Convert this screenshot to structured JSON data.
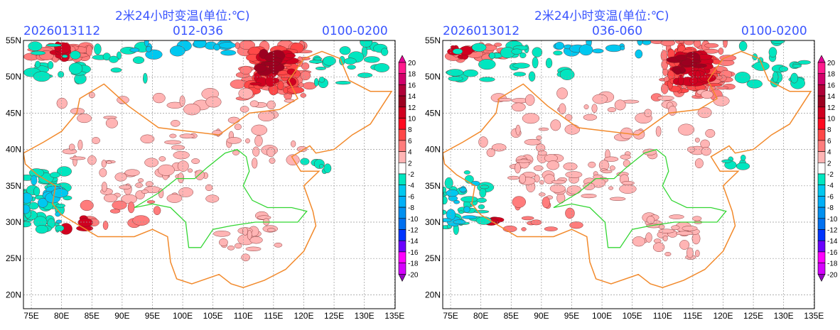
{
  "panels": [
    {
      "title": "2米24小时变温(单位:℃)",
      "init_time": "2026013112",
      "forecast_range": "012-036",
      "period": "0100-0200"
    },
    {
      "title": "2米24小时变温(单位:℃)",
      "init_time": "2026013012",
      "forecast_range": "036-060",
      "period": "0100-0200"
    }
  ],
  "lat_labels": [
    "55N",
    "50N",
    "45N",
    "40N",
    "35N",
    "30N",
    "25N",
    "20N"
  ],
  "lon_labels": [
    "75E",
    "80E",
    "85E",
    "90E",
    "95E",
    "100E",
    "105E",
    "110E",
    "115E",
    "120E",
    "125E",
    "130E",
    "135E"
  ],
  "colorbar": {
    "labels": [
      "20",
      "18",
      "16",
      "14",
      "12",
      "10",
      "8",
      "6",
      "4",
      "2",
      "-2",
      "-4",
      "-6",
      "-8",
      "-10",
      "-12",
      "-14",
      "-16",
      "-18",
      "-20"
    ],
    "colors": [
      "#e60096",
      "#ff1a8c",
      "#d0006a",
      "#b00038",
      "#9c0020",
      "#d00020",
      "#ff0a20",
      "#ff4848",
      "#ff7c7c",
      "#ffb4b4",
      "#ffffff",
      "#00e6c0",
      "#00c8f0",
      "#00b0f8",
      "#0090f0",
      "#0070f0",
      "#0034ff",
      "#6a00ff",
      "#ff00ff",
      "#d400ff",
      "#9400c0"
    ]
  }
}
